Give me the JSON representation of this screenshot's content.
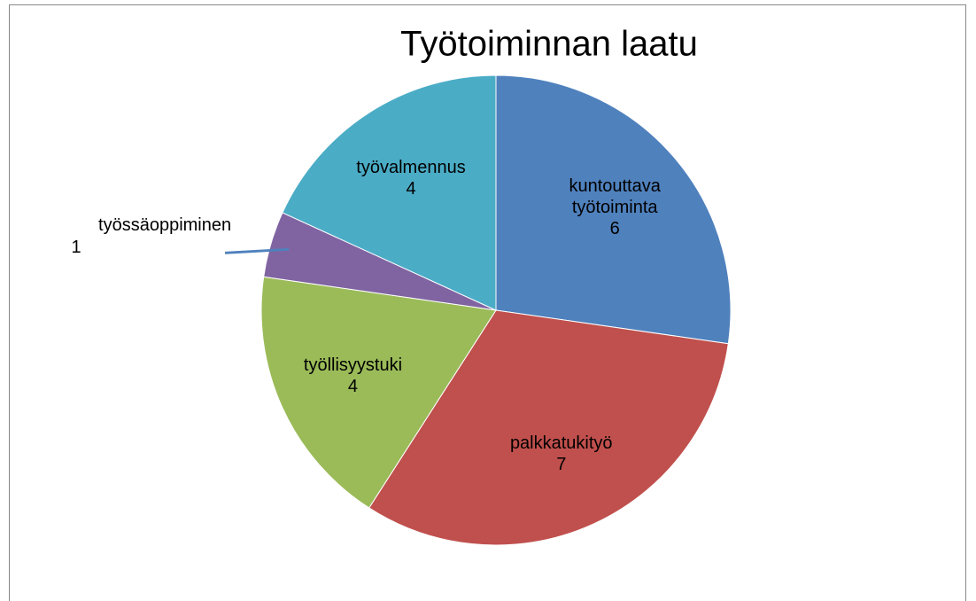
{
  "chart_data": {
    "type": "pie",
    "title": "Työtoiminnan laatu",
    "categories": [
      "kuntouttava työtoiminta",
      "palkkatukityö",
      "työllisyystuki",
      "työssäoppiminen",
      "työvalmennus"
    ],
    "values": [
      6,
      7,
      4,
      1,
      4
    ],
    "colors": [
      "#4f81bd",
      "#c0504d",
      "#9bbb59",
      "#8064a2",
      "#4bacc6"
    ]
  }
}
